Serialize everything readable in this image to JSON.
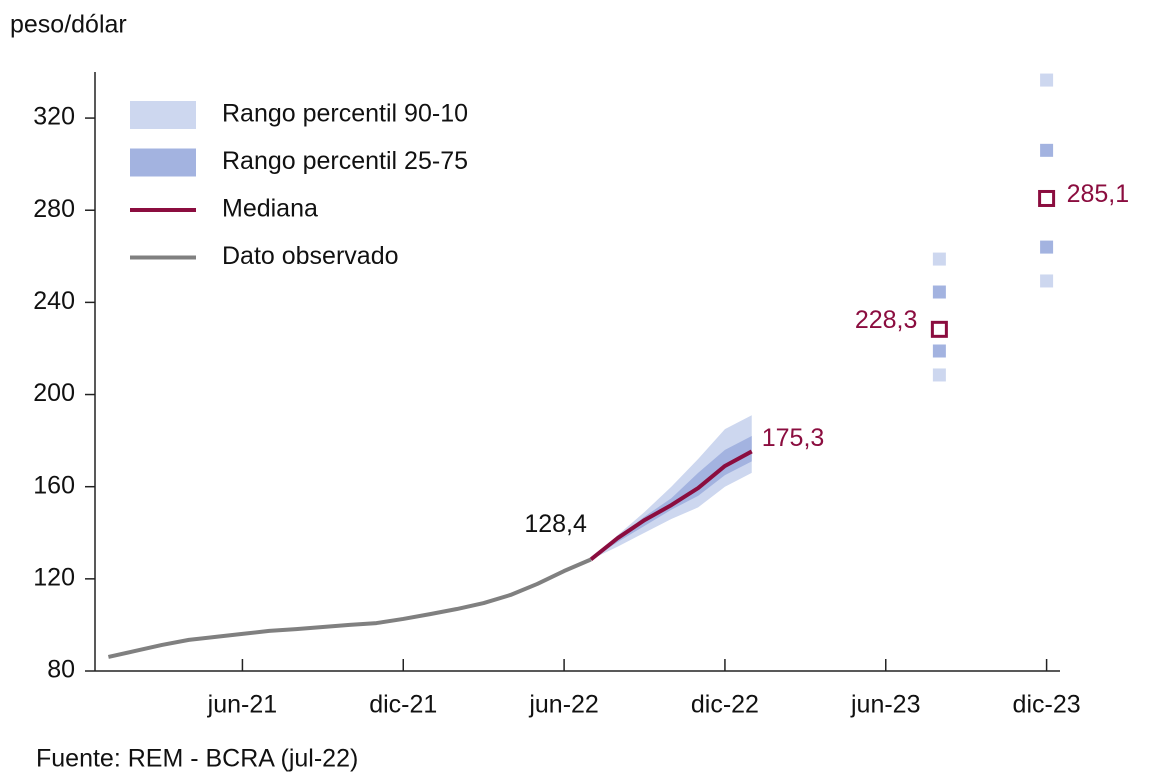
{
  "chart_data": {
    "type": "fan",
    "y_label": "peso/dólar",
    "source": "Fuente: REM - BCRA (jul-22)",
    "categories": [
      null,
      null,
      null,
      null,
      null,
      "jun-21",
      null,
      null,
      null,
      null,
      null,
      "dic-21",
      null,
      null,
      null,
      null,
      null,
      "jun-22",
      null,
      null,
      null,
      null,
      null,
      "dic-22",
      null,
      null,
      null,
      null,
      null,
      "jun-23",
      null,
      null,
      null,
      null,
      null,
      "dic-23"
    ],
    "ylim": [
      80,
      340
    ],
    "yticks": [
      80,
      120,
      160,
      200,
      240,
      280,
      320
    ],
    "grid": false,
    "legend": "top-left",
    "series": [
      {
        "name": "Rango percentil 90-10",
        "color": "#cdd7ef",
        "low": [
          null,
          null,
          null,
          null,
          null,
          null,
          null,
          null,
          null,
          null,
          null,
          null,
          null,
          null,
          null,
          null,
          null,
          null,
          128.4,
          134,
          140,
          146,
          151,
          160,
          166,
          null,
          null,
          null,
          null,
          null,
          null,
          208.5,
          null,
          null,
          null,
          249.3
        ],
        "high": [
          null,
          null,
          null,
          null,
          null,
          null,
          null,
          null,
          null,
          null,
          null,
          null,
          null,
          null,
          null,
          null,
          null,
          null,
          128.4,
          139,
          149,
          160,
          172,
          185,
          191,
          null,
          null,
          null,
          null,
          null,
          null,
          258.8,
          null,
          null,
          null,
          336.5
        ]
      },
      {
        "name": "Rango percentil 25-75",
        "color": "#a3b3e0",
        "low": [
          null,
          null,
          null,
          null,
          null,
          null,
          null,
          null,
          null,
          null,
          null,
          null,
          null,
          null,
          null,
          null,
          null,
          null,
          128.4,
          136,
          143,
          150,
          156,
          165,
          171,
          null,
          null,
          null,
          null,
          null,
          null,
          218.9,
          null,
          null,
          null,
          264
        ],
        "high": [
          null,
          null,
          null,
          null,
          null,
          null,
          null,
          null,
          null,
          null,
          null,
          null,
          null,
          null,
          null,
          null,
          null,
          null,
          128.4,
          138,
          147,
          155,
          166,
          176,
          182,
          null,
          null,
          null,
          null,
          null,
          null,
          244.5,
          null,
          null,
          null,
          306
        ]
      },
      {
        "name": "Mediana",
        "color": "#8b0d3f",
        "label_color": "#8b0d3f",
        "values": [
          null,
          null,
          null,
          null,
          null,
          null,
          null,
          null,
          null,
          null,
          null,
          null,
          null,
          null,
          null,
          null,
          null,
          null,
          128.4,
          137.7,
          145.5,
          152,
          159.4,
          169,
          175.3,
          null,
          null,
          null,
          null,
          null,
          null,
          228.3,
          null,
          null,
          null,
          285.1
        ],
        "value_labels": [
          null,
          null,
          null,
          null,
          null,
          null,
          null,
          null,
          null,
          null,
          null,
          null,
          null,
          null,
          null,
          null,
          null,
          null,
          null,
          null,
          null,
          null,
          null,
          null,
          "175,3",
          null,
          null,
          null,
          null,
          null,
          null,
          "228,3",
          null,
          null,
          null,
          "285,1"
        ]
      },
      {
        "name": "Dato observado",
        "color": "#808080",
        "label_color": "#111111",
        "values": [
          86.1,
          88.7,
          91.3,
          93.5,
          94.8,
          96.1,
          97.4,
          98.2,
          99.1,
          100,
          100.8,
          102.6,
          104.7,
          106.9,
          109.5,
          113,
          117.8,
          123.4,
          128.4,
          null,
          null,
          null,
          null,
          null,
          null,
          null,
          null,
          null,
          null,
          null,
          null,
          null,
          null,
          null,
          null,
          null
        ],
        "value_labels": [
          null,
          null,
          null,
          null,
          null,
          null,
          null,
          null,
          null,
          null,
          null,
          null,
          null,
          null,
          null,
          null,
          null,
          null,
          "128,4",
          null,
          null,
          null,
          null,
          null,
          null,
          null,
          null,
          null,
          null,
          null,
          null,
          null,
          null,
          null,
          null,
          null
        ]
      }
    ]
  }
}
